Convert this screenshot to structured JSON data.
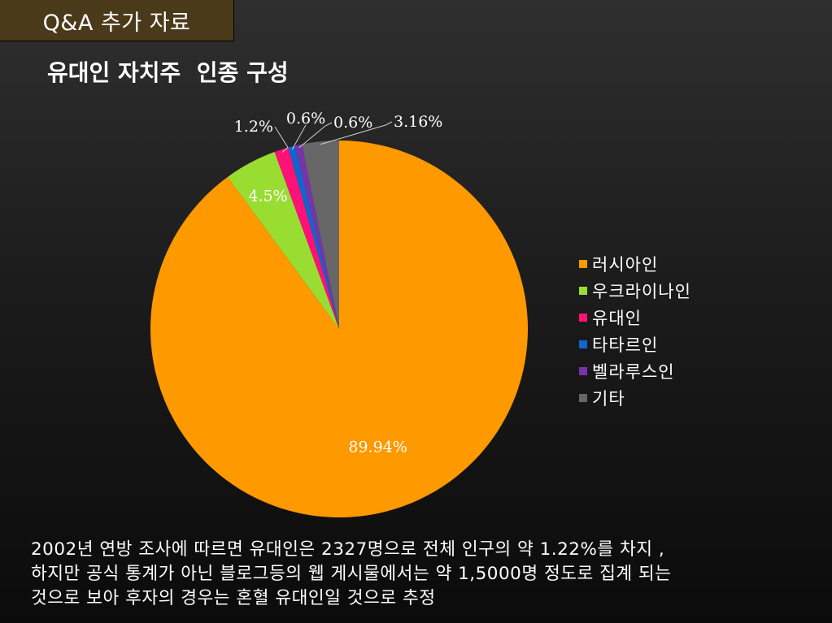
{
  "header": {
    "tab_label": "Q&A 추가 자료"
  },
  "slide_title": "유대인 자치주  인종 구성",
  "colors": {
    "background": "#1c1c1c",
    "header_tab": "#4a3a1a",
    "text": "#ffffff"
  },
  "chart_data": {
    "type": "pie",
    "title": "",
    "legend_position": "right",
    "start_angle": "12 o'clock, clockwise",
    "slices": [
      {
        "name": "러시아인",
        "value": 89.94,
        "label": "89.94%",
        "color": "#ff9900"
      },
      {
        "name": "우크라이나인",
        "value": 4.5,
        "label": "4.5%",
        "color": "#99dd33"
      },
      {
        "name": "유대인",
        "value": 1.2,
        "label": "1.2%",
        "color": "#ff1177"
      },
      {
        "name": "타타르인",
        "value": 0.6,
        "label": "0.6%",
        "color": "#1166cc"
      },
      {
        "name": "벨라루스인",
        "value": 0.6,
        "label": "0.6%",
        "color": "#7733aa"
      },
      {
        "name": "기타",
        "value": 3.16,
        "label": "3.16%",
        "color": "#666666"
      }
    ]
  },
  "note": {
    "lines": [
      "2002년 연방 조사에 따르면 유대인은 2327명으로 전체 인구의 약 1.22%를 차지 ,",
      "하지만 공식 통계가 아닌 블로그등의 웹 게시물에서는 약 1,5000명 정도로 집계 되는",
      "것으로 보아 후자의 경우는 혼혈 유대인일 것으로 추정"
    ]
  }
}
